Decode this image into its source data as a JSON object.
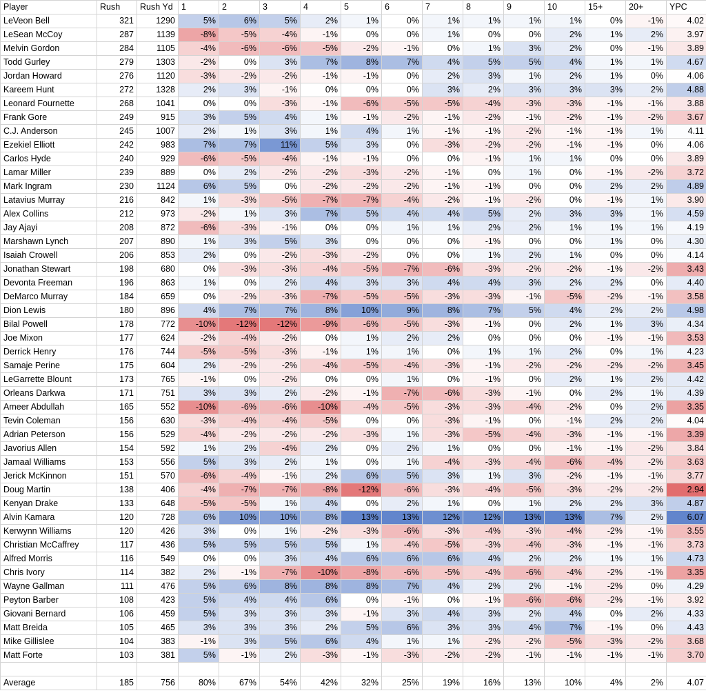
{
  "headers": [
    "Player",
    "Rush",
    "Rush Yd",
    "1",
    "2",
    "3",
    "4",
    "5",
    "6",
    "7",
    "8",
    "9",
    "10",
    "15+",
    "20+",
    "YPC"
  ],
  "rows": [
    [
      "LeVeon Bell",
      "321",
      "1290",
      "5%",
      "6%",
      "5%",
      "2%",
      "1%",
      "0%",
      "1%",
      "1%",
      "1%",
      "1%",
      "0%",
      "-1%",
      "4.02"
    ],
    [
      "LeSean McCoy",
      "287",
      "1139",
      "-8%",
      "-5%",
      "-4%",
      "-1%",
      "0%",
      "0%",
      "1%",
      "0%",
      "0%",
      "2%",
      "1%",
      "2%",
      "3.97"
    ],
    [
      "Melvin Gordon",
      "284",
      "1105",
      "-4%",
      "-6%",
      "-6%",
      "-5%",
      "-2%",
      "-1%",
      "0%",
      "1%",
      "3%",
      "2%",
      "0%",
      "-1%",
      "3.89"
    ],
    [
      "Todd Gurley",
      "279",
      "1303",
      "-2%",
      "0%",
      "3%",
      "7%",
      "8%",
      "7%",
      "4%",
      "5%",
      "5%",
      "4%",
      "1%",
      "1%",
      "4.67"
    ],
    [
      "Jordan Howard",
      "276",
      "1120",
      "-3%",
      "-2%",
      "-2%",
      "-1%",
      "-1%",
      "0%",
      "2%",
      "3%",
      "1%",
      "2%",
      "1%",
      "0%",
      "4.06"
    ],
    [
      "Kareem Hunt",
      "272",
      "1328",
      "2%",
      "3%",
      "-1%",
      "0%",
      "0%",
      "0%",
      "3%",
      "2%",
      "3%",
      "3%",
      "3%",
      "2%",
      "4.88"
    ],
    [
      "Leonard Fournette",
      "268",
      "1041",
      "0%",
      "0%",
      "-3%",
      "-1%",
      "-6%",
      "-5%",
      "-5%",
      "-4%",
      "-3%",
      "-3%",
      "-1%",
      "-1%",
      "3.88"
    ],
    [
      "Frank Gore",
      "249",
      "915",
      "3%",
      "5%",
      "4%",
      "1%",
      "-1%",
      "-2%",
      "-1%",
      "-2%",
      "-1%",
      "-2%",
      "-1%",
      "-2%",
      "3.67"
    ],
    [
      "C.J. Anderson",
      "245",
      "1007",
      "2%",
      "1%",
      "3%",
      "1%",
      "4%",
      "1%",
      "-1%",
      "-1%",
      "-2%",
      "-1%",
      "-1%",
      "1%",
      "4.11"
    ],
    [
      "Ezekiel Elliott",
      "242",
      "983",
      "7%",
      "7%",
      "11%",
      "5%",
      "3%",
      "0%",
      "-3%",
      "-2%",
      "-2%",
      "-1%",
      "-1%",
      "0%",
      "4.06"
    ],
    [
      "Carlos Hyde",
      "240",
      "929",
      "-6%",
      "-5%",
      "-4%",
      "-1%",
      "-1%",
      "0%",
      "0%",
      "-1%",
      "1%",
      "1%",
      "0%",
      "0%",
      "3.89"
    ],
    [
      "Lamar Miller",
      "239",
      "889",
      "0%",
      "2%",
      "-2%",
      "-2%",
      "-3%",
      "-2%",
      "-1%",
      "0%",
      "1%",
      "0%",
      "-1%",
      "-2%",
      "3.72"
    ],
    [
      "Mark Ingram",
      "230",
      "1124",
      "6%",
      "5%",
      "0%",
      "-2%",
      "-2%",
      "-2%",
      "-1%",
      "-1%",
      "0%",
      "0%",
      "2%",
      "2%",
      "4.89"
    ],
    [
      "Latavius Murray",
      "216",
      "842",
      "1%",
      "-3%",
      "-5%",
      "-7%",
      "-7%",
      "-4%",
      "-2%",
      "-1%",
      "-2%",
      "0%",
      "-1%",
      "1%",
      "3.90"
    ],
    [
      "Alex Collins",
      "212",
      "973",
      "-2%",
      "1%",
      "3%",
      "7%",
      "5%",
      "4%",
      "4%",
      "5%",
      "2%",
      "3%",
      "3%",
      "1%",
      "4.59"
    ],
    [
      "Jay Ajayi",
      "208",
      "872",
      "-6%",
      "-3%",
      "-1%",
      "0%",
      "0%",
      "1%",
      "1%",
      "2%",
      "2%",
      "1%",
      "1%",
      "1%",
      "4.19"
    ],
    [
      "Marshawn Lynch",
      "207",
      "890",
      "1%",
      "3%",
      "5%",
      "3%",
      "0%",
      "0%",
      "0%",
      "-1%",
      "0%",
      "0%",
      "1%",
      "0%",
      "4.30"
    ],
    [
      "Isaiah Crowell",
      "206",
      "853",
      "2%",
      "0%",
      "-2%",
      "-3%",
      "-2%",
      "0%",
      "0%",
      "1%",
      "2%",
      "1%",
      "0%",
      "0%",
      "4.14"
    ],
    [
      "Jonathan Stewart",
      "198",
      "680",
      "0%",
      "-3%",
      "-3%",
      "-4%",
      "-5%",
      "-7%",
      "-6%",
      "-3%",
      "-2%",
      "-2%",
      "-1%",
      "-2%",
      "3.43"
    ],
    [
      "Devonta Freeman",
      "196",
      "863",
      "1%",
      "0%",
      "2%",
      "4%",
      "3%",
      "3%",
      "4%",
      "4%",
      "3%",
      "2%",
      "2%",
      "0%",
      "4.40"
    ],
    [
      "DeMarco Murray",
      "184",
      "659",
      "0%",
      "-2%",
      "-3%",
      "-7%",
      "-5%",
      "-5%",
      "-3%",
      "-3%",
      "-1%",
      "-5%",
      "-2%",
      "-1%",
      "3.58"
    ],
    [
      "Dion Lewis",
      "180",
      "896",
      "4%",
      "7%",
      "7%",
      "8%",
      "10%",
      "9%",
      "8%",
      "7%",
      "5%",
      "4%",
      "2%",
      "2%",
      "4.98"
    ],
    [
      "Bilal Powell",
      "178",
      "772",
      "-10%",
      "-12%",
      "-12%",
      "-9%",
      "-6%",
      "-5%",
      "-3%",
      "-1%",
      "0%",
      "2%",
      "1%",
      "3%",
      "4.34"
    ],
    [
      "Joe Mixon",
      "177",
      "624",
      "-2%",
      "-4%",
      "-2%",
      "0%",
      "1%",
      "2%",
      "2%",
      "0%",
      "0%",
      "0%",
      "-1%",
      "-1%",
      "3.53"
    ],
    [
      "Derrick Henry",
      "176",
      "744",
      "-5%",
      "-5%",
      "-3%",
      "-1%",
      "1%",
      "1%",
      "0%",
      "1%",
      "1%",
      "2%",
      "0%",
      "1%",
      "4.23"
    ],
    [
      "Samaje Perine",
      "175",
      "604",
      "2%",
      "-2%",
      "-2%",
      "-4%",
      "-5%",
      "-4%",
      "-3%",
      "-1%",
      "-2%",
      "-2%",
      "-2%",
      "-2%",
      "3.45"
    ],
    [
      "LeGarrette Blount",
      "173",
      "765",
      "-1%",
      "0%",
      "-2%",
      "0%",
      "0%",
      "1%",
      "0%",
      "-1%",
      "0%",
      "2%",
      "1%",
      "2%",
      "4.42"
    ],
    [
      "Orleans Darkwa",
      "171",
      "751",
      "3%",
      "3%",
      "2%",
      "-2%",
      "-1%",
      "-7%",
      "-6%",
      "-3%",
      "-1%",
      "0%",
      "2%",
      "1%",
      "4.39"
    ],
    [
      "Ameer Abdullah",
      "165",
      "552",
      "-10%",
      "-6%",
      "-6%",
      "-10%",
      "-4%",
      "-5%",
      "-3%",
      "-3%",
      "-4%",
      "-2%",
      "0%",
      "2%",
      "3.35"
    ],
    [
      "Tevin Coleman",
      "156",
      "630",
      "-3%",
      "-4%",
      "-4%",
      "-5%",
      "0%",
      "0%",
      "-3%",
      "-1%",
      "0%",
      "-1%",
      "2%",
      "2%",
      "4.04"
    ],
    [
      "Adrian Peterson",
      "156",
      "529",
      "-4%",
      "-2%",
      "-2%",
      "-2%",
      "-3%",
      "1%",
      "-3%",
      "-5%",
      "-4%",
      "-3%",
      "-1%",
      "-1%",
      "3.39"
    ],
    [
      "Javorius Allen",
      "154",
      "592",
      "1%",
      "2%",
      "-4%",
      "2%",
      "0%",
      "2%",
      "1%",
      "0%",
      "0%",
      "-1%",
      "-1%",
      "-2%",
      "3.84"
    ],
    [
      "Jamaal Williams",
      "153",
      "556",
      "5%",
      "3%",
      "2%",
      "1%",
      "0%",
      "1%",
      "-4%",
      "-3%",
      "-4%",
      "-6%",
      "-4%",
      "-2%",
      "3.63"
    ],
    [
      "Jerick McKinnon",
      "151",
      "570",
      "-6%",
      "-4%",
      "-1%",
      "2%",
      "6%",
      "5%",
      "3%",
      "1%",
      "3%",
      "-2%",
      "-1%",
      "-1%",
      "3.77"
    ],
    [
      "Doug Martin",
      "138",
      "406",
      "-4%",
      "-7%",
      "-7%",
      "-8%",
      "-12%",
      "-6%",
      "-3%",
      "-4%",
      "-5%",
      "-3%",
      "-2%",
      "-2%",
      "2.94"
    ],
    [
      "Kenyan Drake",
      "133",
      "648",
      "-5%",
      "-5%",
      "1%",
      "4%",
      "0%",
      "2%",
      "1%",
      "0%",
      "1%",
      "2%",
      "2%",
      "3%",
      "4.87"
    ],
    [
      "Alvin Kamara",
      "120",
      "728",
      "6%",
      "10%",
      "10%",
      "8%",
      "13%",
      "13%",
      "12%",
      "12%",
      "13%",
      "13%",
      "7%",
      "2%",
      "6.07"
    ],
    [
      "Kerwynn Williams",
      "120",
      "426",
      "3%",
      "0%",
      "1%",
      "-2%",
      "-3%",
      "-6%",
      "-3%",
      "-4%",
      "-3%",
      "-4%",
      "-2%",
      "-1%",
      "3.55"
    ],
    [
      "Christian McCaffrey",
      "117",
      "436",
      "5%",
      "5%",
      "5%",
      "5%",
      "1%",
      "-4%",
      "-5%",
      "-3%",
      "-4%",
      "-3%",
      "-1%",
      "-1%",
      "3.73"
    ],
    [
      "Alfred Morris",
      "116",
      "549",
      "0%",
      "0%",
      "3%",
      "4%",
      "6%",
      "6%",
      "6%",
      "4%",
      "2%",
      "2%",
      "1%",
      "1%",
      "4.73"
    ],
    [
      "Chris Ivory",
      "114",
      "382",
      "2%",
      "-1%",
      "-7%",
      "-10%",
      "-8%",
      "-6%",
      "-5%",
      "-4%",
      "-6%",
      "-4%",
      "-2%",
      "-1%",
      "3.35"
    ],
    [
      "Wayne Gallman",
      "111",
      "476",
      "5%",
      "6%",
      "8%",
      "8%",
      "8%",
      "7%",
      "4%",
      "2%",
      "2%",
      "-1%",
      "-2%",
      "0%",
      "4.29"
    ],
    [
      "Peyton Barber",
      "108",
      "423",
      "5%",
      "4%",
      "4%",
      "6%",
      "0%",
      "-1%",
      "0%",
      "-1%",
      "-6%",
      "-6%",
      "-2%",
      "-1%",
      "3.92"
    ],
    [
      "Giovani Bernard",
      "106",
      "459",
      "5%",
      "3%",
      "3%",
      "3%",
      "-1%",
      "3%",
      "4%",
      "3%",
      "2%",
      "4%",
      "0%",
      "2%",
      "4.33"
    ],
    [
      "Matt Breida",
      "105",
      "465",
      "3%",
      "3%",
      "3%",
      "2%",
      "5%",
      "6%",
      "3%",
      "3%",
      "4%",
      "7%",
      "-1%",
      "0%",
      "4.43"
    ],
    [
      "Mike Gillislee",
      "104",
      "383",
      "-1%",
      "3%",
      "5%",
      "6%",
      "4%",
      "1%",
      "1%",
      "-2%",
      "-2%",
      "-5%",
      "-3%",
      "-2%",
      "3.68"
    ],
    [
      "Matt Forte",
      "103",
      "381",
      "5%",
      "-1%",
      "2%",
      "-3%",
      "-1%",
      "-3%",
      "-2%",
      "-2%",
      "-1%",
      "-1%",
      "-1%",
      "-1%",
      "3.70"
    ]
  ],
  "average": [
    "Average",
    "185",
    "756",
    "80%",
    "67%",
    "54%",
    "42%",
    "32%",
    "25%",
    "19%",
    "16%",
    "13%",
    "10%",
    "4%",
    "2%",
    "4.07"
  ],
  "colors": {
    "positive": "#5a7fc9",
    "negative": "#e06566",
    "neutral": "#ffffff",
    "grid": "#d4d4d4"
  }
}
